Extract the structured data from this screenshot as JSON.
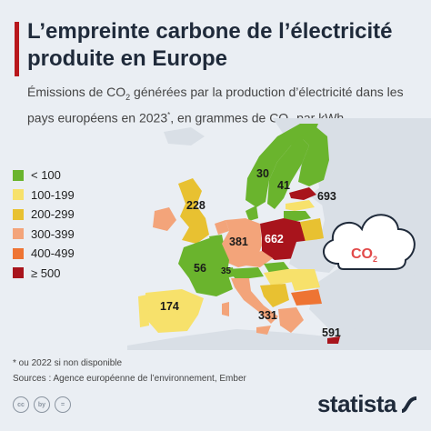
{
  "title": "L’empreinte carbone de l’électricité produite en Europe",
  "subtitle": {
    "part1": "Émissions de CO",
    "sub1": "2",
    "part2": " générées par la production d’électricité dans les pays européens en 2023",
    "sup": "*",
    "part3": ", en grammes de CO",
    "sub2": "2",
    "part4": " par kWh"
  },
  "legend": [
    {
      "label": "< 100",
      "color": "#6ab42d"
    },
    {
      "label": "100-199",
      "color": "#f7e16b"
    },
    {
      "label": "200-299",
      "color": "#e8c131"
    },
    {
      "label": "300-399",
      "color": "#f3a47a"
    },
    {
      "label": "400-499",
      "color": "#ee7433"
    },
    {
      "label": "≥ 500",
      "color": "#a8141c"
    }
  ],
  "map_values": {
    "norway": "30",
    "sweden": "41",
    "estonia": "693",
    "united_kingdom": "228",
    "germany": "381",
    "poland": "662",
    "france": "56",
    "switzerland": "35",
    "spain": "174",
    "italy": "331",
    "cyprus": "591"
  },
  "cloud": {
    "label": "CO",
    "sub": "2"
  },
  "notes": {
    "footnote": "* ou 2022 si non disponible",
    "sources": "Sources : Agence européenne de l’environnement, Ember"
  },
  "footer": {
    "license_icons": [
      "cc",
      "by",
      "="
    ],
    "brand": "statista"
  }
}
